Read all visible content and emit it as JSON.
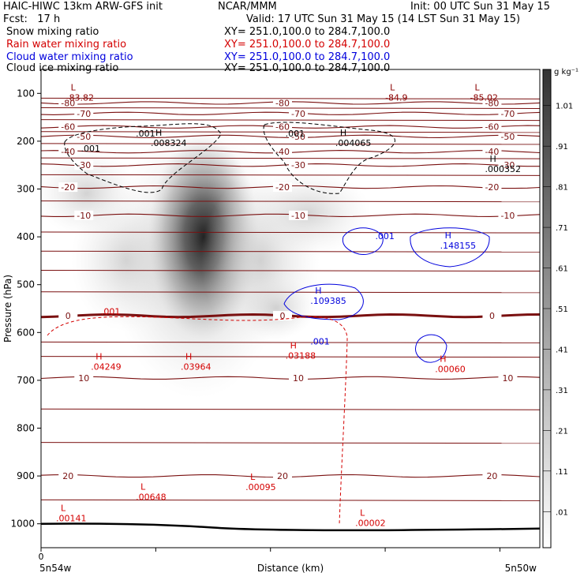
{
  "header": {
    "line1_left": "HAIC-HIWC 13km ARW-GFS init",
    "line1_center": "NCAR/MMM",
    "line1_right": "Init: 00 UTC Sun 31 May 15",
    "line2_left": "Fcst:   17 h",
    "line2_right": "Valid: 17 UTC Sun 31 May 15 (14 LST Sun 31 May 15)",
    "fields": [
      {
        "name": "Snow mixing ratio",
        "xy": "XY= 251.0,100.0 to 284.7,100.0",
        "color": "#000000"
      },
      {
        "name": "Rain water mixing ratio",
        "xy": "XY= 251.0,100.0 to 284.7,100.0",
        "color": "#d40000"
      },
      {
        "name": "Cloud water mixing ratio",
        "xy": "XY= 251.0,100.0 to 284.7,100.0",
        "color": "#0000dd"
      },
      {
        "name": "Cloud ice mixing ratio",
        "xy": "XY= 251.0,100.0 to 284.7,100.0",
        "color": "#000000"
      }
    ]
  },
  "chart_data": {
    "type": "heatmap",
    "title": "HAIC-HIWC 13km ARW-GFS init",
    "ylabel": "Pressure (hPa)",
    "xlabel": "Distance (km)",
    "x_left_label": "5n54w",
    "x_right_label": "5n50w",
    "x_origin_label": "0",
    "ylim": [
      50,
      1050
    ],
    "y_ticks": [
      100,
      200,
      300,
      400,
      500,
      600,
      700,
      800,
      900,
      1000
    ],
    "y_tick_labels": [
      "100",
      "200",
      "300",
      "400",
      "500",
      "600",
      "700",
      "800",
      "900",
      "1000"
    ],
    "colorbar": {
      "unit": "g kg⁻¹",
      "levels": [
        0.01,
        0.11,
        0.21,
        0.31,
        0.41,
        0.51,
        0.61,
        0.71,
        0.81,
        0.91,
        1.01
      ],
      "labels": [
        ".01",
        ".11",
        ".21",
        ".31",
        ".41",
        ".51",
        ".61",
        ".71",
        ".81",
        ".91",
        "1.01"
      ]
    },
    "temperature_contours": [
      {
        "label": "-80",
        "p": 120
      },
      {
        "label": "-70",
        "p": 142
      },
      {
        "label": "-60",
        "p": 170
      },
      {
        "label": "-50",
        "p": 190
      },
      {
        "label": "-40",
        "p": 222
      },
      {
        "label": "-30",
        "p": 250
      },
      {
        "label": "-20",
        "p": 296
      },
      {
        "label": "-10",
        "p": 355
      },
      {
        "label": "0",
        "p": 565
      },
      {
        "label": "10",
        "p": 695
      },
      {
        "label": "20",
        "p": 900
      }
    ],
    "annotations": [
      {
        "text": "L",
        "value": "-83.82",
        "x": 0.05,
        "p": 100,
        "color": "#8b0000"
      },
      {
        "text": "L",
        "value": "-84.9",
        "x": 0.69,
        "p": 100,
        "color": "#8b0000"
      },
      {
        "text": "L",
        "value": "-85.02",
        "x": 0.86,
        "p": 100,
        "color": "#8b0000"
      },
      {
        "text": "H",
        "value": ".008324",
        "x": 0.22,
        "p": 195,
        "color": "#000000"
      },
      {
        "text": "H",
        "value": ".004065",
        "x": 0.59,
        "p": 195,
        "color": "#000000"
      },
      {
        "text": "H",
        "value": ".000352",
        "x": 0.89,
        "p": 250,
        "color": "#000000"
      },
      {
        "text": "H",
        "value": ".148155",
        "x": 0.8,
        "p": 410,
        "color": "#0000dd"
      },
      {
        "text": "H",
        "value": ".109385",
        "x": 0.54,
        "p": 525,
        "color": "#0000dd"
      },
      {
        "text": "H",
        "value": ".03188",
        "x": 0.49,
        "p": 640,
        "color": "#d40000"
      },
      {
        "text": "H",
        "value": ".00060",
        "x": 0.79,
        "p": 668,
        "color": "#d40000"
      },
      {
        "text": "H",
        "value": ".04249",
        "x": 0.1,
        "p": 663,
        "color": "#d40000"
      },
      {
        "text": "H",
        "value": ".03964",
        "x": 0.28,
        "p": 663,
        "color": "#d40000"
      },
      {
        "text": "L",
        "value": ".00095",
        "x": 0.41,
        "p": 915,
        "color": "#d40000"
      },
      {
        "text": "L",
        "value": ".00648",
        "x": 0.19,
        "p": 935,
        "color": "#d40000"
      },
      {
        "text": "L",
        "value": ".00141",
        "x": 0.03,
        "p": 980,
        "color": "#d40000"
      },
      {
        "text": "L",
        "value": ".00002",
        "x": 0.63,
        "p": 990,
        "color": "#d40000"
      }
    ],
    "contour_labels": [
      {
        "text": ".001",
        "x": 0.19,
        "p": 190,
        "color": "#000000"
      },
      {
        "text": ".001",
        "x": 0.49,
        "p": 190,
        "color": "#000000"
      },
      {
        "text": ".001",
        "x": 0.08,
        "p": 222,
        "color": "#000000"
      },
      {
        "text": ".001",
        "x": 0.67,
        "p": 405,
        "color": "#0000dd"
      },
      {
        "text": ".001",
        "x": 0.54,
        "p": 625,
        "color": "#0000dd"
      },
      {
        "text": ".001",
        "x": 0.12,
        "p": 562,
        "color": "#d40000"
      }
    ]
  }
}
